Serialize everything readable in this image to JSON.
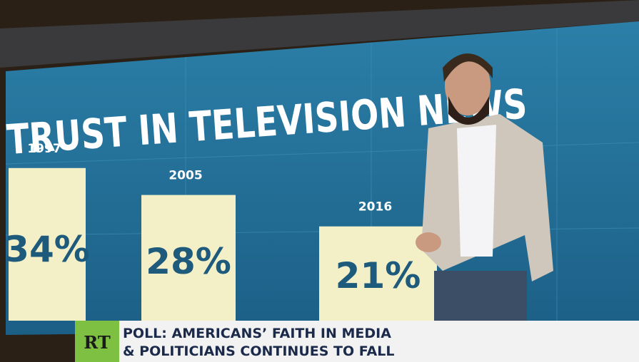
{
  "chart_data": {
    "type": "bar",
    "title": "TRUST IN TELEVISION NEWS",
    "categories": [
      "1997",
      "2005",
      "2016"
    ],
    "values": [
      34,
      28,
      21
    ],
    "value_labels": [
      "34%",
      "28%",
      "21%"
    ],
    "color": "#f3f0c8"
  },
  "ticker": {
    "logo": "RT",
    "lines": [
      "POLL: AMERICANS’ FAITH IN MEDIA",
      "& POLITICIANS CONTINUES TO FALL"
    ]
  }
}
